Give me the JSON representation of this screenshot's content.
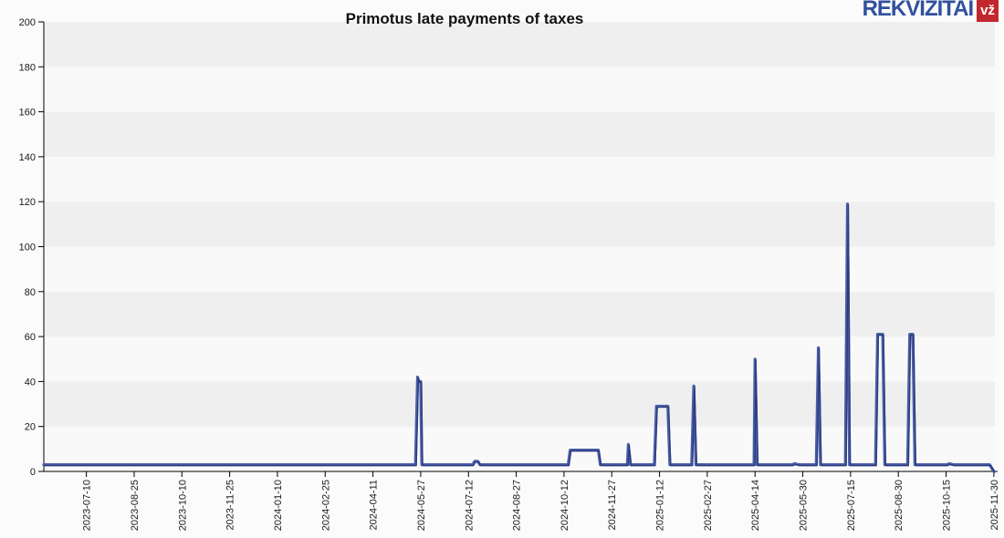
{
  "page": {
    "background": "#fbfbfb"
  },
  "header": {
    "title": "Primotus late payments of taxes",
    "logo": {
      "text": "REKVIZITAI",
      "badge": "vž"
    }
  },
  "chart_data": {
    "type": "line",
    "title": "Primotus late payments of taxes",
    "ylabel": "",
    "xlabel": "",
    "ylim": [
      0,
      200
    ],
    "y_ticks": [
      0,
      20,
      40,
      60,
      80,
      100,
      120,
      140,
      160,
      180,
      200
    ],
    "x_domain": [
      "2023-05-30",
      "2025-12-01"
    ],
    "x_tick_labels": [
      "2023-07-10",
      "2023-08-25",
      "2023-10-10",
      "2023-11-25",
      "2024-01-10",
      "2024-02-25",
      "2024-04-11",
      "2024-05-27",
      "2024-07-12",
      "2024-08-27",
      "2024-10-12",
      "2024-11-27",
      "2025-01-12",
      "2025-02-27",
      "2025-04-14",
      "2025-05-30",
      "2025-07-15",
      "2025-08-30",
      "2025-10-15",
      "2025-11-30"
    ],
    "grid": "horizontal-bands",
    "band_color_light": "#f9f9f9",
    "band_color_dark": "#efefef",
    "axis_color": "#000000",
    "line_color": "#4c60a8",
    "line_shadow_color": "#2a3a7d",
    "legend": "none",
    "points": [
      [
        "2023-05-30",
        3
      ],
      [
        "2024-05-22",
        3
      ],
      [
        "2024-05-24",
        42
      ],
      [
        "2024-05-25",
        40
      ],
      [
        "2024-05-27",
        40
      ],
      [
        "2024-05-28",
        3
      ],
      [
        "2024-07-16",
        3
      ],
      [
        "2024-07-18",
        4.5
      ],
      [
        "2024-07-21",
        4.5
      ],
      [
        "2024-07-23",
        3
      ],
      [
        "2024-10-16",
        3
      ],
      [
        "2024-10-18",
        9.5
      ],
      [
        "2024-11-14",
        9.5
      ],
      [
        "2024-11-16",
        3
      ],
      [
        "2024-12-12",
        3
      ],
      [
        "2024-12-13",
        12
      ],
      [
        "2024-12-15",
        3
      ],
      [
        "2025-01-07",
        3
      ],
      [
        "2025-01-09",
        29
      ],
      [
        "2025-01-20",
        29
      ],
      [
        "2025-01-22",
        3
      ],
      [
        "2025-02-12",
        3
      ],
      [
        "2025-02-14",
        38
      ],
      [
        "2025-02-16",
        3
      ],
      [
        "2025-04-13",
        3
      ],
      [
        "2025-04-14",
        50
      ],
      [
        "2025-04-16",
        3
      ],
      [
        "2025-05-20",
        3
      ],
      [
        "2025-05-22",
        3.5
      ],
      [
        "2025-05-26",
        3
      ],
      [
        "2025-06-12",
        3
      ],
      [
        "2025-06-14",
        55
      ],
      [
        "2025-06-16",
        3
      ],
      [
        "2025-07-10",
        3
      ],
      [
        "2025-07-12",
        119
      ],
      [
        "2025-07-14",
        3
      ],
      [
        "2025-08-08",
        3
      ],
      [
        "2025-08-10",
        61
      ],
      [
        "2025-08-15",
        61
      ],
      [
        "2025-08-17",
        3
      ],
      [
        "2025-09-08",
        3
      ],
      [
        "2025-09-10",
        61
      ],
      [
        "2025-09-13",
        61
      ],
      [
        "2025-09-15",
        3
      ],
      [
        "2025-10-16",
        3
      ],
      [
        "2025-10-18",
        3.5
      ],
      [
        "2025-10-22",
        3
      ],
      [
        "2025-11-26",
        3
      ],
      [
        "2025-11-30",
        0
      ]
    ]
  }
}
